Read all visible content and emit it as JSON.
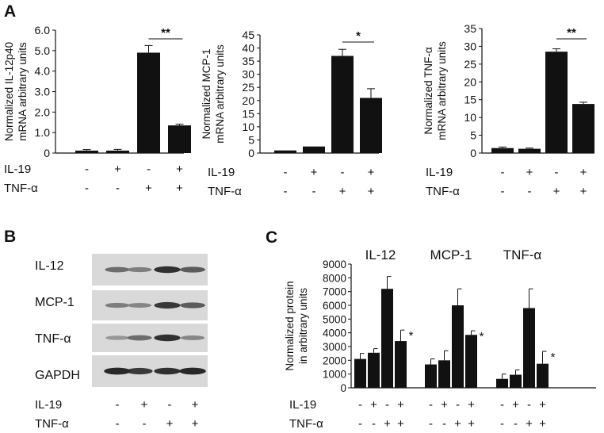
{
  "panel_labels": {
    "A": "A",
    "B": "B",
    "C": "C"
  },
  "chart_data": [
    {
      "type": "bar",
      "panel": "A",
      "ylabel_line1": "Normalized IL-12p40",
      "ylabel_line2": "mRNA arbitrary units",
      "ylim": [
        0,
        6.0
      ],
      "yticks": [
        "0",
        "1.0",
        "2.0",
        "3.0",
        "4.0",
        "5.0",
        "6.0"
      ],
      "values": [
        0.12,
        0.12,
        4.9,
        1.35
      ],
      "errors": [
        0.05,
        0.06,
        0.35,
        0.06
      ],
      "significance": "**",
      "treatments": {
        "row1_label": "IL-19",
        "row2_label": "TNF-α",
        "row1": [
          "-",
          "+",
          "-",
          "+"
        ],
        "row2": [
          "-",
          "-",
          "+",
          "+"
        ]
      }
    },
    {
      "type": "bar",
      "panel": "A",
      "ylabel_line1": "Normalized MCP-1",
      "ylabel_line2": "mRNA arbitrary units",
      "ylim": [
        0,
        45
      ],
      "yticks": [
        "0",
        "5",
        "10",
        "15",
        "20",
        "25",
        "30",
        "35",
        "40",
        "45"
      ],
      "values": [
        1.0,
        2.5,
        37,
        21
      ],
      "errors": [
        0,
        0,
        2.5,
        3.5
      ],
      "significance": "*",
      "treatments": {
        "row1_label": "IL-19",
        "row2_label": "TNF-α",
        "row1": [
          "-",
          "+",
          "-",
          "+"
        ],
        "row2": [
          "-",
          "-",
          "+",
          "+"
        ]
      }
    },
    {
      "type": "bar",
      "panel": "A",
      "ylabel_line1": "Normalized TNF-α",
      "ylabel_line2": "mRNA arbitrary units",
      "ylim": [
        0,
        35
      ],
      "yticks": [
        "0",
        "5",
        "10",
        "15",
        "20",
        "25",
        "30",
        "35"
      ],
      "values": [
        1.4,
        1.2,
        28.5,
        13.8
      ],
      "errors": [
        0.3,
        0.2,
        0.8,
        0.5
      ],
      "significance": "**",
      "treatments": {
        "row1_label": "IL-19",
        "row2_label": "TNF-α",
        "row1": [
          "-",
          "+",
          "-",
          "+"
        ],
        "row2": [
          "-",
          "-",
          "+",
          "+"
        ]
      }
    },
    {
      "type": "bar",
      "panel": "C",
      "ylabel_line1": "Normalized protein",
      "ylabel_line2": "in arbitrary units",
      "ylim": [
        0,
        9000
      ],
      "yticks": [
        "0",
        "1000",
        "2000",
        "3000",
        "4000",
        "5000",
        "6000",
        "7000",
        "8000",
        "9000"
      ],
      "groups": [
        {
          "name": "IL-12",
          "values": [
            2100,
            2550,
            7200,
            3400
          ],
          "errors": [
            400,
            300,
            900,
            800
          ],
          "star": "*"
        },
        {
          "name": "MCP-1",
          "values": [
            1700,
            2000,
            6000,
            3850
          ],
          "errors": [
            400,
            700,
            1200,
            300
          ],
          "star": "*"
        },
        {
          "name": "TNF-α",
          "values": [
            650,
            950,
            5800,
            1750
          ],
          "errors": [
            350,
            350,
            1400,
            900
          ],
          "star": "*"
        }
      ],
      "treatments": {
        "row1_label": "IL-19",
        "row2_label": "TNF-α",
        "row1": [
          "-",
          "+",
          "-",
          "+"
        ],
        "row2": [
          "-",
          "-",
          "+",
          "+"
        ]
      }
    }
  ],
  "blot": {
    "rows": [
      {
        "label": "IL-12",
        "intensity": [
          0.55,
          0.45,
          0.9,
          0.65
        ]
      },
      {
        "label": "MCP-1",
        "intensity": [
          0.45,
          0.4,
          0.85,
          0.65
        ]
      },
      {
        "label": "TNF-α",
        "intensity": [
          0.3,
          0.55,
          0.9,
          0.4
        ]
      },
      {
        "label": "GAPDH",
        "intensity": [
          0.95,
          0.85,
          0.9,
          0.95
        ]
      }
    ],
    "treatments": {
      "row1_label": "IL-19",
      "row2_label": "TNF-α",
      "row1": [
        "-",
        "+",
        "-",
        "+"
      ],
      "row2": [
        "-",
        "-",
        "+",
        "+"
      ]
    }
  }
}
